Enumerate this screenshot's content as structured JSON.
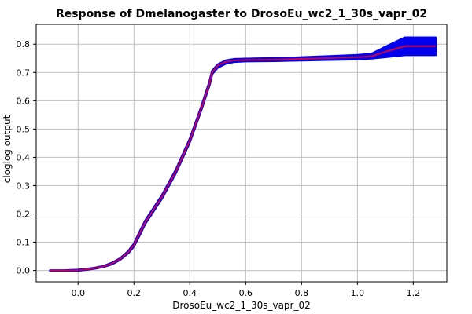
{
  "chart_data": {
    "type": "line",
    "title": "Response of Dmelanogaster to DrosoEu_wc2_1_30s_vapr_02",
    "xlabel": "DrosoEu_wc2_1_30s_vapr_02",
    "ylabel": "cloglog output",
    "xlim": [
      -0.15,
      1.32
    ],
    "ylim": [
      -0.04,
      0.87
    ],
    "xticks": [
      0.0,
      0.2,
      0.4,
      0.6,
      0.8,
      1.0,
      1.2
    ],
    "yticks": [
      0.0,
      0.1,
      0.2,
      0.3,
      0.4,
      0.5,
      0.6,
      0.7,
      0.8
    ],
    "grid": true,
    "colors": {
      "mean_line": "#cc0044",
      "band": "#0000ee"
    },
    "series": [
      {
        "x": [
          -0.1,
          -0.05,
          0.0,
          0.03,
          0.06,
          0.09,
          0.12,
          0.15,
          0.18,
          0.2,
          0.22,
          0.24,
          0.26,
          0.3,
          0.35,
          0.4,
          0.44,
          0.47,
          0.48,
          0.5,
          0.53,
          0.56,
          0.6,
          0.7,
          0.8,
          0.9,
          1.0,
          1.05,
          1.1,
          1.17,
          1.2,
          1.28
        ],
        "mean": [
          0.0,
          0.0,
          0.001,
          0.004,
          0.008,
          0.014,
          0.024,
          0.04,
          0.065,
          0.09,
          0.13,
          0.17,
          0.2,
          0.26,
          0.35,
          0.46,
          0.57,
          0.66,
          0.7,
          0.725,
          0.738,
          0.743,
          0.744,
          0.745,
          0.748,
          0.751,
          0.754,
          0.757,
          0.773,
          0.793,
          0.793,
          0.793
        ],
        "lower": [
          0.0,
          0.0,
          0.0,
          0.003,
          0.007,
          0.013,
          0.022,
          0.038,
          0.062,
          0.086,
          0.125,
          0.165,
          0.195,
          0.255,
          0.345,
          0.455,
          0.565,
          0.655,
          0.695,
          0.718,
          0.732,
          0.738,
          0.74,
          0.741,
          0.743,
          0.745,
          0.747,
          0.75,
          0.755,
          0.762,
          0.762,
          0.762
        ],
        "upper": [
          0.0,
          0.0,
          0.002,
          0.005,
          0.009,
          0.015,
          0.026,
          0.042,
          0.068,
          0.094,
          0.135,
          0.175,
          0.205,
          0.265,
          0.355,
          0.465,
          0.575,
          0.665,
          0.705,
          0.728,
          0.742,
          0.747,
          0.748,
          0.75,
          0.753,
          0.757,
          0.761,
          0.765,
          0.79,
          0.823,
          0.823,
          0.823
        ]
      }
    ]
  }
}
